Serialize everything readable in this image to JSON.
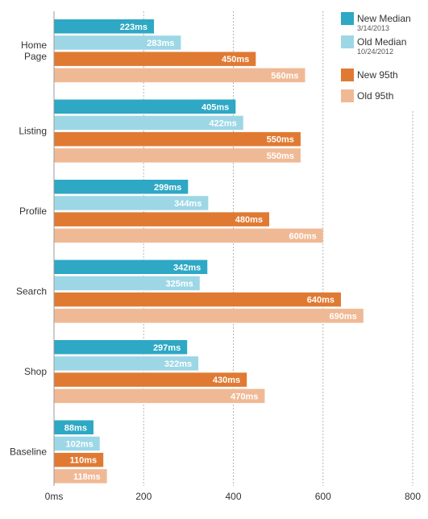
{
  "chart_data": {
    "type": "bar",
    "orientation": "horizontal",
    "categories": [
      "Home Page",
      "Listing",
      "Profile",
      "Search",
      "Shop",
      "Baseline"
    ],
    "series": [
      {
        "name": "New Median",
        "date": "3/14/2013",
        "color": "#2ea8c4",
        "values": [
          223,
          405,
          299,
          342,
          297,
          88
        ],
        "labels": [
          "223ms",
          "405ms",
          "299ms",
          "342ms",
          "297ms",
          "88ms"
        ]
      },
      {
        "name": "Old Median",
        "date": "10/24/2012",
        "color": "#9dd7e6",
        "values": [
          283,
          422,
          344,
          325,
          322,
          102
        ],
        "labels": [
          "283ms",
          "422ms",
          "344ms",
          "325ms",
          "322ms",
          "102ms"
        ]
      },
      {
        "name": "New 95th",
        "color": "#e07a33",
        "values": [
          450,
          550,
          480,
          640,
          430,
          110
        ],
        "labels": [
          "450ms",
          "550ms",
          "480ms",
          "640ms",
          "430ms",
          "110ms"
        ]
      },
      {
        "name": "Old 95th",
        "color": "#f0b995",
        "values": [
          560,
          550,
          600,
          690,
          470,
          118
        ],
        "labels": [
          "560ms",
          "550ms",
          "600ms",
          "690ms",
          "470ms",
          "118ms"
        ]
      }
    ],
    "xticks": [
      "0ms",
      "200",
      "400",
      "600",
      "800"
    ],
    "xtick_values": [
      0,
      200,
      400,
      600,
      800
    ],
    "xlim": [
      0,
      800
    ],
    "grid": "vertical dashed",
    "legend_position": "top-right"
  }
}
